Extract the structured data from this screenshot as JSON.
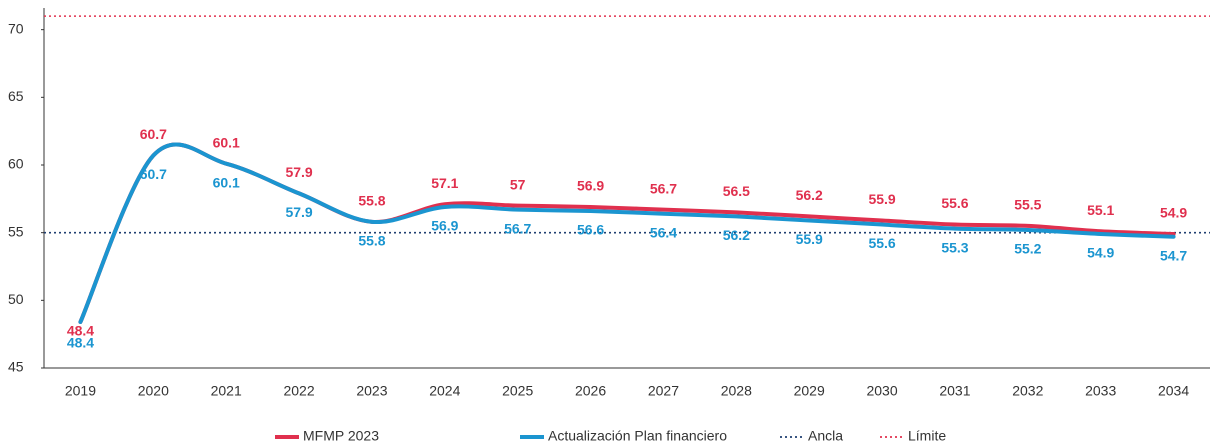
{
  "chart_data": {
    "type": "line",
    "categories": [
      "2019",
      "2020",
      "2021",
      "2022",
      "2023",
      "2024",
      "2025",
      "2026",
      "2027",
      "2028",
      "2029",
      "2030",
      "2031",
      "2032",
      "2033",
      "2034"
    ],
    "series": [
      {
        "name": "MFMP 2023",
        "color": "#e0304e",
        "values": [
          48.4,
          60.7,
          60.1,
          57.9,
          55.8,
          57.1,
          57.0,
          56.9,
          56.7,
          56.5,
          56.2,
          55.9,
          55.6,
          55.5,
          55.1,
          54.9
        ]
      },
      {
        "name": "Actualización Plan financiero",
        "color": "#1b95d0",
        "values": [
          48.4,
          60.7,
          60.1,
          57.9,
          55.8,
          56.9,
          56.7,
          56.6,
          56.4,
          56.2,
          55.9,
          55.6,
          55.3,
          55.2,
          54.9,
          54.7
        ]
      }
    ],
    "reference_lines": [
      {
        "name": "Ancla",
        "value": 55,
        "color": "#1f3f70"
      },
      {
        "name": "Límite",
        "value": 71,
        "color": "#e0304e"
      }
    ],
    "ylim": [
      45,
      71.6
    ],
    "yticks": [
      45,
      50,
      55,
      60,
      65,
      70
    ]
  }
}
